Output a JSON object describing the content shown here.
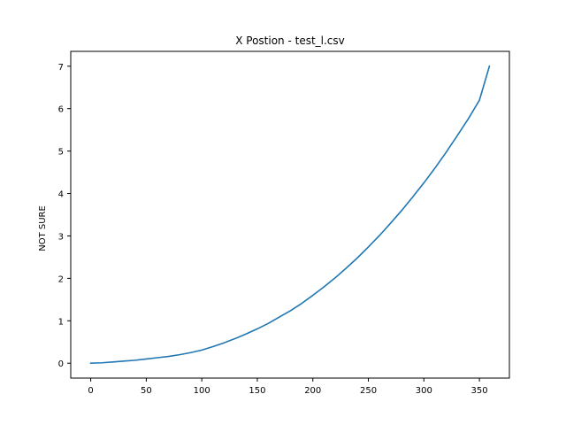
{
  "chart_data": {
    "type": "line",
    "title": "X Postion - test_l.csv",
    "xlabel": "",
    "ylabel": "NOT SURE",
    "xlim": [
      -18,
      377
    ],
    "ylim": [
      -0.35,
      7.35
    ],
    "xticks": [
      0,
      50,
      100,
      150,
      200,
      250,
      300,
      350
    ],
    "yticks": [
      0,
      1,
      2,
      3,
      4,
      5,
      6,
      7
    ],
    "grid": false,
    "line_color": "#1f77b4",
    "series": [
      {
        "x": [
          0,
          10,
          20,
          30,
          40,
          50,
          60,
          70,
          80,
          90,
          100,
          110,
          120,
          130,
          140,
          150,
          160,
          170,
          180,
          190,
          200,
          210,
          220,
          230,
          240,
          250,
          260,
          270,
          280,
          290,
          300,
          310,
          320,
          330,
          340,
          350,
          359
        ],
        "values": [
          0,
          0.01,
          0.03,
          0.05,
          0.07,
          0.1,
          0.13,
          0.16,
          0.2,
          0.25,
          0.31,
          0.39,
          0.48,
          0.58,
          0.69,
          0.81,
          0.94,
          1.09,
          1.24,
          1.41,
          1.6,
          1.8,
          2.01,
          2.24,
          2.48,
          2.74,
          3.01,
          3.3,
          3.6,
          3.92,
          4.25,
          4.6,
          4.97,
          5.36,
          5.76,
          6.2,
          7.0
        ]
      }
    ]
  }
}
